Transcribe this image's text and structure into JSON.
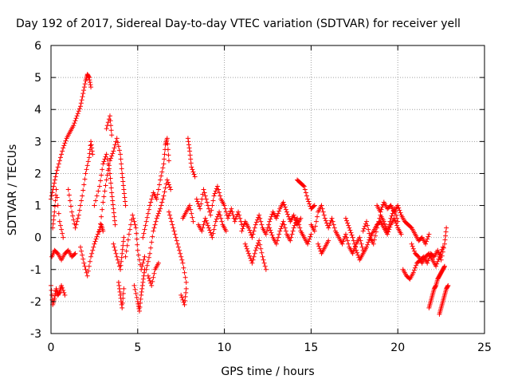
{
  "chart_data": {
    "type": "scatter",
    "title": "Day 192 of 2017, Sidereal Day-to-day VTEC variation (SDTVAR) for receiver yell",
    "xlabel": "GPS time / hours",
    "ylabel": "SDTVAR / TECUs",
    "xlim": [
      0,
      25
    ],
    "ylim": [
      -3,
      6
    ],
    "xticks": [
      0,
      5,
      10,
      15,
      20,
      25
    ],
    "yticks": [
      -3,
      -2,
      -1,
      0,
      1,
      2,
      3,
      4,
      5,
      6
    ],
    "grid": true,
    "marker": "+",
    "color": "#ff0000",
    "series": [
      {
        "name": "SDTVAR",
        "segments": [
          {
            "x": [
              0.0,
              0.15,
              0.3,
              0.5,
              0.7,
              0.9,
              1.1,
              1.3,
              1.5,
              1.7,
              1.85,
              2.0,
              2.1,
              2.2,
              2.3
            ],
            "y": [
              1.2,
              1.6,
              2.0,
              2.4,
              2.8,
              3.1,
              3.3,
              3.5,
              3.8,
              4.1,
              4.5,
              4.9,
              5.1,
              5.0,
              4.7
            ]
          },
          {
            "x": [
              0.0,
              0.1,
              0.2,
              0.3,
              0.4,
              0.5,
              0.6,
              0.8
            ],
            "y": [
              -1.5,
              -2.1,
              -1.9,
              -1.6,
              -1.8,
              -1.7,
              -1.5,
              -1.8
            ]
          },
          {
            "x": [
              0.05,
              0.2,
              0.4,
              0.6,
              0.8,
              1.0,
              1.2,
              1.4
            ],
            "y": [
              -0.6,
              -0.4,
              -0.5,
              -0.7,
              -0.5,
              -0.4,
              -0.6,
              -0.5
            ]
          },
          {
            "x": [
              0.1,
              0.2,
              0.3,
              0.5,
              0.7
            ],
            "y": [
              0.3,
              0.8,
              1.5,
              0.5,
              0.0
            ]
          },
          {
            "x": [
              1.0,
              1.2,
              1.4,
              1.6,
              1.8,
              2.0,
              2.2,
              2.3,
              2.4
            ],
            "y": [
              1.5,
              0.8,
              0.3,
              0.7,
              1.3,
              2.0,
              2.5,
              3.0,
              2.6
            ]
          },
          {
            "x": [
              1.7,
              1.9,
              2.1,
              2.3,
              2.5,
              2.7,
              2.9,
              3.0
            ],
            "y": [
              -0.3,
              -0.8,
              -1.2,
              -0.6,
              -0.2,
              0.1,
              0.4,
              0.2
            ]
          },
          {
            "x": [
              2.5,
              2.8,
              3.0,
              3.2,
              3.4,
              3.5,
              3.6,
              3.7
            ],
            "y": [
              1.0,
              1.6,
              2.3,
              2.6,
              2.0,
              1.4,
              0.9,
              0.4
            ]
          },
          {
            "x": [
              2.8,
              3.0,
              3.2,
              3.4,
              3.6,
              3.8,
              4.0,
              4.1,
              4.2,
              4.3
            ],
            "y": [
              0.2,
              1.1,
              1.8,
              2.4,
              2.7,
              3.1,
              2.6,
              2.0,
              1.5,
              1.0
            ]
          },
          {
            "x": [
              3.6,
              3.8,
              4.0,
              4.1,
              4.2
            ],
            "y": [
              -0.2,
              -0.6,
              -1.0,
              -0.5,
              0.0
            ]
          },
          {
            "x": [
              3.2,
              3.4,
              3.5
            ],
            "y": [
              3.4,
              3.8,
              3.2
            ]
          },
          {
            "x": [
              3.9,
              4.0,
              4.1,
              4.2
            ],
            "y": [
              -1.4,
              -1.8,
              -2.2,
              -1.6
            ]
          },
          {
            "x": [
              4.3,
              4.5,
              4.7,
              4.9,
              5.0,
              5.2,
              5.4
            ],
            "y": [
              -0.6,
              0.1,
              0.7,
              0.3,
              -0.4,
              -1.0,
              -0.6
            ]
          },
          {
            "x": [
              4.8,
              5.0,
              5.1,
              5.2,
              5.3,
              5.4
            ],
            "y": [
              -1.5,
              -2.0,
              -2.3,
              -1.8,
              -1.4,
              -1.0
            ]
          },
          {
            "x": [
              5.3,
              5.5,
              5.7,
              5.9,
              6.1,
              6.3,
              6.5,
              6.6,
              6.7,
              6.8
            ],
            "y": [
              0.0,
              0.5,
              1.0,
              1.4,
              1.2,
              1.8,
              2.3,
              2.9,
              3.1,
              2.4
            ]
          },
          {
            "x": [
              5.5,
              5.7,
              5.9,
              6.1,
              6.3,
              6.5,
              6.7,
              6.9
            ],
            "y": [
              -1.0,
              -0.5,
              0.2,
              0.6,
              0.9,
              1.3,
              1.8,
              1.5
            ]
          },
          {
            "x": [
              5.6,
              5.8,
              6.0,
              6.2
            ],
            "y": [
              -1.2,
              -1.5,
              -1.0,
              -0.8
            ]
          },
          {
            "x": [
              6.8,
              7.0,
              7.2,
              7.4,
              7.6,
              7.8
            ],
            "y": [
              0.8,
              0.4,
              0.0,
              -0.4,
              -0.8,
              -1.4
            ]
          },
          {
            "x": [
              7.5,
              7.7,
              7.8
            ],
            "y": [
              -1.8,
              -2.1,
              -1.6
            ]
          },
          {
            "x": [
              7.6,
              7.8,
              8.0,
              8.2
            ],
            "y": [
              0.6,
              0.8,
              1.0,
              0.5
            ]
          },
          {
            "x": [
              7.9,
              8.0,
              8.1,
              8.3
            ],
            "y": [
              3.1,
              2.7,
              2.2,
              1.9
            ]
          },
          {
            "x": [
              8.4,
              8.6,
              8.8,
              9.0,
              9.2,
              9.4,
              9.6,
              9.8,
              10.0,
              10.2,
              10.4,
              10.6,
              10.8,
              11.0
            ],
            "y": [
              1.2,
              0.9,
              1.5,
              1.1,
              0.7,
              1.3,
              1.6,
              1.2,
              1.0,
              0.6,
              0.9,
              0.5,
              0.8,
              0.4
            ]
          },
          {
            "x": [
              8.5,
              8.7,
              8.9,
              9.1,
              9.3,
              9.5,
              9.7,
              9.9,
              10.1
            ],
            "y": [
              0.4,
              0.2,
              0.6,
              0.3,
              0.0,
              0.5,
              0.8,
              0.4,
              0.2
            ]
          },
          {
            "x": [
              11.0,
              11.2,
              11.4,
              11.6,
              11.8,
              12.0,
              12.2,
              12.4,
              12.6,
              12.8,
              13.0,
              13.2,
              13.4,
              13.6,
              13.8,
              14.0,
              14.2,
              14.4
            ],
            "y": [
              0.2,
              0.5,
              0.3,
              0.0,
              0.4,
              0.7,
              0.3,
              0.1,
              0.5,
              0.8,
              0.6,
              0.9,
              1.1,
              0.8,
              0.5,
              0.7,
              0.4,
              0.6
            ]
          },
          {
            "x": [
              11.2,
              11.4,
              11.6,
              11.8,
              12.0,
              12.2,
              12.4
            ],
            "y": [
              -0.2,
              -0.5,
              -0.8,
              -0.4,
              -0.1,
              -0.6,
              -1.0
            ]
          },
          {
            "x": [
              12.6,
              12.8,
              13.0,
              13.2,
              13.4,
              13.6,
              13.8,
              14.0,
              14.2,
              14.4,
              14.6,
              14.8,
              15.0
            ],
            "y": [
              0.3,
              0.0,
              -0.2,
              0.2,
              0.5,
              0.1,
              -0.1,
              0.3,
              0.6,
              0.2,
              0.0,
              -0.2,
              0.1
            ]
          },
          {
            "x": [
              14.2,
              14.4,
              14.6,
              14.8,
              15.0,
              15.2
            ],
            "y": [
              1.8,
              1.7,
              1.6,
              1.2,
              0.9,
              1.0
            ]
          },
          {
            "x": [
              15.0,
              15.2,
              15.4,
              15.6,
              15.8,
              16.0,
              16.2,
              16.4,
              16.6,
              16.8,
              17.0,
              17.2,
              17.4,
              17.6,
              17.8,
              18.0
            ],
            "y": [
              0.4,
              0.2,
              0.8,
              1.0,
              0.6,
              0.3,
              0.6,
              0.2,
              0.0,
              -0.2,
              0.1,
              -0.3,
              -0.5,
              -0.2,
              0.0,
              -0.4
            ]
          },
          {
            "x": [
              15.4,
              15.6,
              15.8,
              16.0
            ],
            "y": [
              -0.2,
              -0.5,
              -0.3,
              -0.1
            ]
          },
          {
            "x": [
              17.0,
              17.2,
              17.4,
              17.6,
              17.8,
              18.0,
              18.2,
              18.4,
              18.6,
              18.8,
              19.0,
              19.2,
              19.4,
              19.6,
              19.8,
              20.0,
              20.2
            ],
            "y": [
              0.6,
              0.3,
              0.0,
              -0.4,
              -0.7,
              -0.5,
              -0.3,
              0.0,
              0.2,
              0.4,
              0.5,
              0.3,
              0.1,
              0.4,
              0.6,
              0.3,
              0.1
            ]
          },
          {
            "x": [
              18.0,
              18.2,
              18.4,
              18.6,
              18.8,
              19.0,
              19.2,
              19.4,
              19.6,
              19.8,
              20.0
            ],
            "y": [
              0.2,
              0.5,
              0.0,
              -0.2,
              0.3,
              0.7,
              0.5,
              0.2,
              0.6,
              0.9,
              0.5
            ]
          },
          {
            "x": [
              18.8,
              19.0,
              19.2,
              19.4,
              19.6,
              19.8,
              20.0,
              20.2,
              20.4,
              20.6,
              20.8,
              21.0,
              21.2,
              21.4,
              21.6,
              21.8
            ],
            "y": [
              1.0,
              0.8,
              1.1,
              0.9,
              1.0,
              0.8,
              1.0,
              0.7,
              0.5,
              0.4,
              0.3,
              0.1,
              -0.1,
              0.0,
              -0.2,
              0.1
            ]
          },
          {
            "x": [
              20.3,
              20.5,
              20.7,
              20.9,
              21.1,
              21.3,
              21.5,
              21.7,
              21.9,
              22.1,
              22.3,
              22.5,
              22.7,
              22.8
            ],
            "y": [
              -1.0,
              -1.2,
              -1.3,
              -1.1,
              -0.8,
              -0.7,
              -0.6,
              -0.8,
              -0.5,
              -0.6,
              -0.4,
              -0.7,
              -0.2,
              0.3
            ]
          },
          {
            "x": [
              20.8,
              21.0,
              21.2,
              21.4,
              21.6,
              21.8,
              22.0,
              22.2,
              22.4,
              22.6
            ],
            "y": [
              -0.2,
              -0.5,
              -0.6,
              -0.8,
              -0.6,
              -0.5,
              -0.7,
              -0.9,
              -0.6,
              -0.3
            ]
          },
          {
            "x": [
              21.8,
              21.9,
              22.0,
              22.1,
              22.2,
              22.3,
              22.4,
              22.5,
              22.6,
              22.7
            ],
            "y": [
              -2.2,
              -2.0,
              -1.8,
              -1.6,
              -1.5,
              -1.3,
              -1.2,
              -1.1,
              -1.0,
              -0.9
            ]
          },
          {
            "x": [
              22.4,
              22.5,
              22.6,
              22.7,
              22.8,
              22.9
            ],
            "y": [
              -2.4,
              -2.2,
              -2.0,
              -1.8,
              -1.6,
              -1.5
            ]
          }
        ]
      }
    ]
  }
}
